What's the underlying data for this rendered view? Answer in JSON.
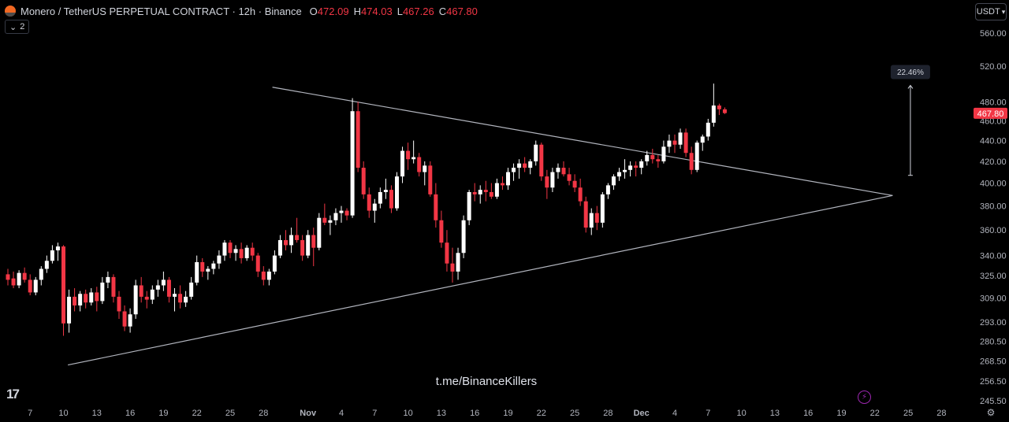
{
  "header": {
    "title": "Monero / TetherUS PERPETUAL CONTRACT · 12h · Binance",
    "ohlc": [
      {
        "k": "O",
        "v": "472.09"
      },
      {
        "k": "H",
        "v": "474.03"
      },
      {
        "k": "L",
        "v": "467.26"
      },
      {
        "k": "C",
        "v": "467.80"
      }
    ]
  },
  "indicator_badge": {
    "icon": "chevron-down-icon",
    "count": "2"
  },
  "currency": {
    "label": "USDT",
    "icon": "chevron-down-icon"
  },
  "tv_logo": "17",
  "watermark": "t.me/BinanceKillers",
  "colors": {
    "up": "#ffffff",
    "down": "#f23645",
    "line": "#b2b5be",
    "label_bg": "#1e222d"
  },
  "chart_data": {
    "type": "candlestick",
    "interval": "12h",
    "symbol": "XMRUSDT.P",
    "y_ticks": [
      "560.00",
      "520.00",
      "480.00",
      "460.00",
      "440.00",
      "420.00",
      "400.00",
      "380.00",
      "360.00",
      "340.00",
      "325.00",
      "309.00",
      "293.00",
      "280.50",
      "268.50",
      "256.50",
      "245.50"
    ],
    "y_scale": "log",
    "ylim": [
      245.5,
      560
    ],
    "x_ticks": [
      "7",
      "10",
      "13",
      "16",
      "19",
      "22",
      "25",
      "28",
      "Nov",
      "4",
      "7",
      "10",
      "13",
      "16",
      "19",
      "22",
      "25",
      "28",
      "Dec",
      "4",
      "7",
      "10",
      "13",
      "16",
      "19",
      "22",
      "25",
      "28"
    ],
    "x_tick_days": [
      7,
      10,
      13,
      16,
      19,
      22,
      25,
      28,
      32,
      35,
      38,
      41,
      44,
      47,
      50,
      53,
      56,
      59,
      62,
      65,
      68,
      71,
      74,
      77,
      80,
      83,
      86,
      89
    ],
    "xlim_days": [
      4.7,
      90
    ],
    "first_candle_day": 5,
    "last_price": "467.80",
    "measure_label": "22.46%",
    "candles": [
      [
        326,
        330,
        318,
        322
      ],
      [
        323,
        328,
        316,
        318
      ],
      [
        318,
        329,
        316,
        327
      ],
      [
        327,
        331,
        320,
        322
      ],
      [
        322,
        326,
        311,
        313
      ],
      [
        313,
        324,
        311,
        322
      ],
      [
        322,
        332,
        318,
        330
      ],
      [
        330,
        340,
        327,
        336
      ],
      [
        336,
        348,
        334,
        344
      ],
      [
        344,
        350,
        336,
        347
      ],
      [
        347,
        348,
        284,
        292
      ],
      [
        292,
        315,
        286,
        310
      ],
      [
        310,
        316,
        300,
        304
      ],
      [
        304,
        314,
        300,
        312
      ],
      [
        312,
        315,
        302,
        306
      ],
      [
        306,
        316,
        304,
        313
      ],
      [
        313,
        317,
        300,
        307
      ],
      [
        307,
        324,
        305,
        320
      ],
      [
        320,
        328,
        316,
        324
      ],
      [
        324,
        326,
        306,
        310
      ],
      [
        310,
        314,
        295,
        300
      ],
      [
        300,
        304,
        287,
        290
      ],
      [
        290,
        302,
        286,
        298
      ],
      [
        298,
        322,
        295,
        318
      ],
      [
        318,
        324,
        306,
        310
      ],
      [
        310,
        314,
        302,
        308
      ],
      [
        308,
        318,
        305,
        315
      ],
      [
        315,
        322,
        310,
        318
      ],
      [
        318,
        328,
        314,
        322
      ],
      [
        322,
        324,
        306,
        310
      ],
      [
        310,
        316,
        300,
        312
      ],
      [
        312,
        318,
        302,
        306
      ],
      [
        306,
        314,
        303,
        310
      ],
      [
        310,
        324,
        308,
        320
      ],
      [
        320,
        340,
        318,
        335
      ],
      [
        335,
        338,
        324,
        328
      ],
      [
        328,
        332,
        322,
        330
      ],
      [
        330,
        336,
        326,
        334
      ],
      [
        334,
        344,
        330,
        340
      ],
      [
        340,
        352,
        336,
        350
      ],
      [
        350,
        352,
        338,
        342
      ],
      [
        342,
        348,
        336,
        345
      ],
      [
        345,
        350,
        334,
        338
      ],
      [
        338,
        348,
        336,
        346
      ],
      [
        346,
        350,
        336,
        340
      ],
      [
        340,
        342,
        324,
        328
      ],
      [
        328,
        332,
        318,
        322
      ],
      [
        322,
        330,
        318,
        328
      ],
      [
        328,
        344,
        326,
        340
      ],
      [
        340,
        356,
        338,
        352
      ],
      [
        352,
        360,
        344,
        348
      ],
      [
        348,
        362,
        342,
        356
      ],
      [
        356,
        370,
        350,
        352
      ],
      [
        352,
        356,
        336,
        340
      ],
      [
        340,
        360,
        338,
        356
      ],
      [
        356,
        362,
        332,
        346
      ],
      [
        346,
        374,
        344,
        370
      ],
      [
        370,
        382,
        364,
        366
      ],
      [
        366,
        372,
        356,
        368
      ],
      [
        368,
        378,
        364,
        374
      ],
      [
        374,
        380,
        366,
        376
      ],
      [
        376,
        378,
        368,
        372
      ],
      [
        372,
        484,
        370,
        470
      ],
      [
        470,
        480,
        410,
        414
      ],
      [
        414,
        420,
        386,
        390
      ],
      [
        390,
        396,
        370,
        376
      ],
      [
        376,
        386,
        366,
        382
      ],
      [
        382,
        396,
        378,
        392
      ],
      [
        392,
        404,
        386,
        394
      ],
      [
        394,
        398,
        374,
        378
      ],
      [
        378,
        410,
        376,
        406
      ],
      [
        406,
        434,
        400,
        430
      ],
      [
        430,
        438,
        412,
        422
      ],
      [
        422,
        440,
        418,
        424
      ],
      [
        424,
        428,
        406,
        410
      ],
      [
        410,
        420,
        398,
        416
      ],
      [
        416,
        420,
        388,
        390
      ],
      [
        390,
        400,
        362,
        368
      ],
      [
        368,
        376,
        346,
        350
      ],
      [
        350,
        360,
        328,
        334
      ],
      [
        334,
        346,
        320,
        328
      ],
      [
        328,
        346,
        322,
        342
      ],
      [
        342,
        372,
        338,
        368
      ],
      [
        368,
        394,
        364,
        392
      ],
      [
        392,
        400,
        384,
        390
      ],
      [
        390,
        398,
        382,
        394
      ],
      [
        394,
        402,
        384,
        392
      ],
      [
        392,
        400,
        386,
        388
      ],
      [
        388,
        404,
        386,
        400
      ],
      [
        400,
        406,
        394,
        398
      ],
      [
        398,
        414,
        394,
        410
      ],
      [
        410,
        418,
        402,
        414
      ],
      [
        414,
        422,
        404,
        418
      ],
      [
        418,
        424,
        410,
        414
      ],
      [
        414,
        422,
        408,
        420
      ],
      [
        420,
        440,
        416,
        436
      ],
      [
        436,
        438,
        402,
        406
      ],
      [
        406,
        412,
        386,
        396
      ],
      [
        396,
        414,
        392,
        410
      ],
      [
        410,
        418,
        404,
        414
      ],
      [
        414,
        420,
        406,
        408
      ],
      [
        408,
        414,
        398,
        402
      ],
      [
        402,
        408,
        392,
        396
      ],
      [
        396,
        404,
        380,
        384
      ],
      [
        384,
        388,
        358,
        362
      ],
      [
        362,
        378,
        356,
        374
      ],
      [
        374,
        380,
        360,
        366
      ],
      [
        366,
        392,
        362,
        390
      ],
      [
        390,
        400,
        386,
        398
      ],
      [
        398,
        408,
        394,
        406
      ],
      [
        406,
        414,
        402,
        410
      ],
      [
        410,
        422,
        404,
        412
      ],
      [
        412,
        420,
        406,
        416
      ],
      [
        416,
        420,
        406,
        414
      ],
      [
        414,
        422,
        408,
        420
      ],
      [
        420,
        430,
        416,
        426
      ],
      [
        426,
        432,
        418,
        422
      ],
      [
        422,
        426,
        414,
        420
      ],
      [
        420,
        440,
        418,
        434
      ],
      [
        434,
        446,
        428,
        440
      ],
      [
        440,
        446,
        428,
        436
      ],
      [
        436,
        452,
        432,
        448
      ],
      [
        448,
        452,
        424,
        428
      ],
      [
        428,
        434,
        408,
        412
      ],
      [
        412,
        440,
        410,
        438
      ],
      [
        438,
        446,
        430,
        444
      ],
      [
        444,
        462,
        440,
        458
      ],
      [
        458,
        500,
        454,
        476
      ],
      [
        476,
        478,
        466,
        472
      ],
      [
        472,
        474,
        467,
        468
      ]
    ],
    "trendlines": [
      {
        "name": "upper-trendline",
        "from": {
          "day": 28.8,
          "price": 496
        },
        "to": {
          "day": 84.6,
          "price": 389
        }
      },
      {
        "name": "lower-trendline",
        "from": {
          "day": 10.4,
          "price": 266
        },
        "to": {
          "day": 84.6,
          "price": 389
        }
      }
    ],
    "measure": {
      "day": 86.2,
      "from_price": 407,
      "to_price": 498
    }
  }
}
